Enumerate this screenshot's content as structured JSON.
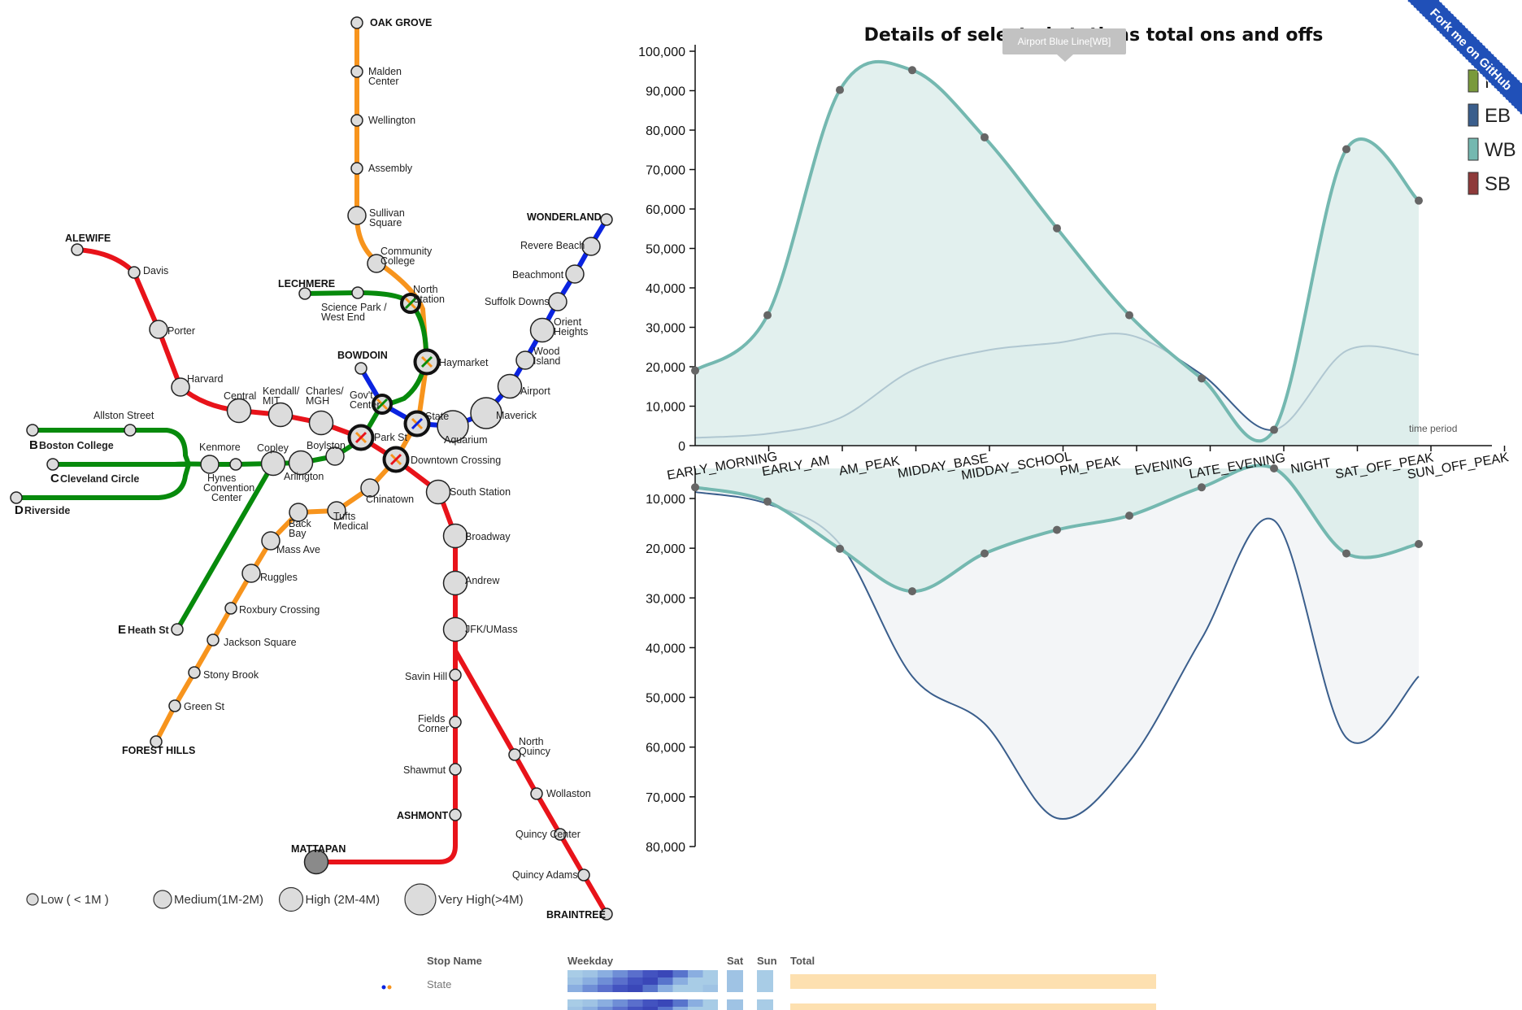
{
  "ribbon": {
    "label": "Fork me on GitHub",
    "color": "#2050b8"
  },
  "map": {
    "colors": {
      "red": "#e8131a",
      "orange": "#f7941d",
      "green": "#078a0c",
      "blue": "#0a23e0",
      "station_fill": "#dcdcdc",
      "mattapan_fill": "#8a8a8a"
    },
    "stations": [
      {
        "id": "oak_grove",
        "label": "OAK GROVE",
        "terminal": true
      },
      {
        "id": "malden",
        "label": "Malden",
        "label2": "Center"
      },
      {
        "id": "wellington",
        "label": "Wellington"
      },
      {
        "id": "assembly",
        "label": "Assembly"
      },
      {
        "id": "sullivan",
        "label": "Sullivan",
        "label2": "Square"
      },
      {
        "id": "community",
        "label": "Community",
        "label2": "College"
      },
      {
        "id": "north_station",
        "label": "North",
        "label2": "Station"
      },
      {
        "id": "haymarket",
        "label": "Haymarket"
      },
      {
        "id": "state",
        "label": "State"
      },
      {
        "id": "downtown",
        "label": "Downtown Crossing"
      },
      {
        "id": "chinatown",
        "label": "Chinatown"
      },
      {
        "id": "tufts",
        "label": "Tufts",
        "label2": "Medical"
      },
      {
        "id": "back_bay",
        "label": "Back",
        "label2": "Bay"
      },
      {
        "id": "mass_ave",
        "label": "Mass Ave"
      },
      {
        "id": "ruggles",
        "label": "Ruggles"
      },
      {
        "id": "roxbury",
        "label": "Roxbury Crossing"
      },
      {
        "id": "jackson",
        "label": "Jackson Square"
      },
      {
        "id": "stony",
        "label": "Stony Brook"
      },
      {
        "id": "green_st",
        "label": "Green St"
      },
      {
        "id": "forest_hills",
        "label": "FOREST HILLS",
        "terminal": true
      },
      {
        "id": "alewife",
        "label": "ALEWIFE",
        "terminal": true
      },
      {
        "id": "davis",
        "label": "Davis"
      },
      {
        "id": "porter",
        "label": "Porter"
      },
      {
        "id": "harvard",
        "label": "Harvard"
      },
      {
        "id": "central",
        "label": "Central"
      },
      {
        "id": "kendall",
        "label": "Kendall/",
        "label2": "MIT"
      },
      {
        "id": "charles",
        "label": "Charles/",
        "label2": "MGH"
      },
      {
        "id": "park_st",
        "label": "Park St"
      },
      {
        "id": "south_station",
        "label": "South Station"
      },
      {
        "id": "broadway",
        "label": "Broadway"
      },
      {
        "id": "andrew",
        "label": "Andrew"
      },
      {
        "id": "jfk",
        "label": "JFK/UMass"
      },
      {
        "id": "savin",
        "label": "Savin Hill"
      },
      {
        "id": "fields",
        "label": "Fields",
        "label2": "Corner"
      },
      {
        "id": "shawmut",
        "label": "Shawmut"
      },
      {
        "id": "ashmont",
        "label": "ASHMONT",
        "terminal": true
      },
      {
        "id": "mattapan",
        "label": "MATTAPAN",
        "terminal": true
      },
      {
        "id": "n_quincy",
        "label": "North",
        "label2": "Quincy"
      },
      {
        "id": "wollaston",
        "label": "Wollaston"
      },
      {
        "id": "quincy_center",
        "label": "Quincy Center"
      },
      {
        "id": "quincy_adams",
        "label": "Quincy Adams"
      },
      {
        "id": "braintree",
        "label": "BRAINTREE",
        "terminal": true
      },
      {
        "id": "wonderland",
        "label": "WONDERLAND",
        "terminal": true
      },
      {
        "id": "revere",
        "label": "Revere Beach"
      },
      {
        "id": "beachmont",
        "label": "Beachmont"
      },
      {
        "id": "suffolk",
        "label": "Suffolk Downs"
      },
      {
        "id": "orient",
        "label": "Orient",
        "label2": "Heights"
      },
      {
        "id": "wood",
        "label": "Wood",
        "label2": "Island"
      },
      {
        "id": "airport",
        "label": "Airport"
      },
      {
        "id": "maverick",
        "label": "Maverick"
      },
      {
        "id": "aquarium",
        "label": "Aquarium"
      },
      {
        "id": "govt",
        "label": "Gov't",
        "label2": "Center"
      },
      {
        "id": "bowdoin",
        "label": "BOWDOIN",
        "terminal": true
      },
      {
        "id": "lechmere",
        "label": "LECHMERE",
        "terminal": true
      },
      {
        "id": "science",
        "label": "Science Park /",
        "label2": "West End"
      },
      {
        "id": "boylston",
        "label": "Boylston"
      },
      {
        "id": "arlington",
        "label": "Arlington"
      },
      {
        "id": "copley",
        "label": "Copley"
      },
      {
        "id": "hynes",
        "label": "Hynes",
        "label2": "Convention",
        "label3": "Center"
      },
      {
        "id": "kenmore",
        "label": "Kenmore"
      },
      {
        "id": "allston",
        "label": "Allston Street"
      },
      {
        "id": "boston_college",
        "label": "Boston College",
        "branch": "B"
      },
      {
        "id": "cleveland",
        "label": "Cleveland Circle",
        "branch": "C"
      },
      {
        "id": "riverside",
        "label": "Riverside",
        "branch": "D"
      },
      {
        "id": "heath",
        "label": "Heath St",
        "branch": "E"
      }
    ],
    "size_legend": [
      {
        "label": "Low ( < 1M )",
        "size": "low"
      },
      {
        "label": "Medium(1M-2M)",
        "size": "medium"
      },
      {
        "label": "High (2M-4M)",
        "size": "high"
      },
      {
        "label": "Very High(>4M)",
        "size": "very_high"
      }
    ]
  },
  "tooltip": {
    "text": "Airport Blue Line[WB]"
  },
  "chart_data": {
    "type": "area",
    "title": "Details of selected stations total ons and offs",
    "xlabel": "time period",
    "categories": [
      "EARLY_MORNING",
      "EARLY_AM",
      "AM_PEAK",
      "MIDDAY_BASE",
      "MIDDAY_SCHOOL",
      "PM_PEAK",
      "EVENING",
      "LATE_EVENING",
      "NIGHT",
      "SAT_OFF_PEAK",
      "SUN_OFF_PEAK"
    ],
    "ons_axis": {
      "ticks": [
        "100,000",
        "90,000",
        "80,000",
        "70,000",
        "60,000",
        "50,000",
        "40,000",
        "30,000",
        "20,000",
        "10,000",
        "0"
      ],
      "range": [
        0,
        100000
      ]
    },
    "offs_axis": {
      "ticks": [
        "10,000",
        "20,000",
        "30,000",
        "40,000",
        "50,000",
        "60,000",
        "70,000",
        "80,000"
      ],
      "range": [
        0,
        80000
      ]
    },
    "legend": [
      {
        "label": "NB",
        "color": "#7a9a3c"
      },
      {
        "label": "EB",
        "color": "#3a5e8c"
      },
      {
        "label": "WB",
        "color": "#74b8b0"
      },
      {
        "label": "SB",
        "color": "#8e3a3a"
      }
    ],
    "series": [
      {
        "name": "WB",
        "color": "#74b8b0",
        "ons": [
          19000,
          33000,
          90000,
          95000,
          78000,
          55000,
          33000,
          17000,
          4000,
          75000,
          62000
        ],
        "offs": [
          4000,
          7000,
          17000,
          26000,
          18000,
          13000,
          10000,
          4000,
          0,
          18000,
          16000
        ]
      },
      {
        "name": "EB",
        "color": "#3a5e8c",
        "ons": [
          2000,
          3000,
          7000,
          19000,
          24000,
          26000,
          28000,
          18000,
          4000,
          24000,
          23000
        ],
        "offs": [
          5000,
          7500,
          16000,
          44000,
          54000,
          74000,
          62000,
          36000,
          11000,
          57000,
          44000
        ]
      }
    ]
  },
  "table": {
    "headers": {
      "stop": "Stop Name",
      "weekday": "Weekday",
      "sat": "Sat",
      "sun": "Sun",
      "total": "Total"
    },
    "rows": [
      {
        "name": "State"
      },
      {
        "name": ""
      }
    ]
  }
}
